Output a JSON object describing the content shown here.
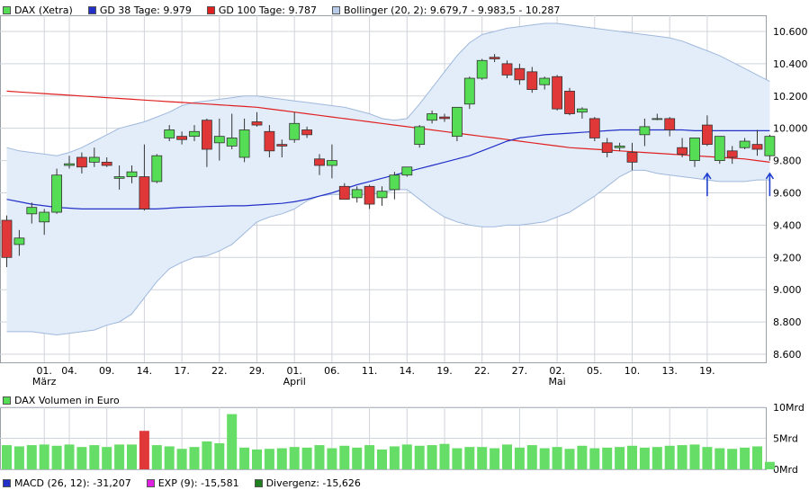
{
  "legend": {
    "dax": "DAX (Xetra)",
    "gd38": "GD 38 Tage: 9.979",
    "gd100": "GD 100 Tage: 9.787",
    "bollinger": "Bollinger (20, 2): 9.679,7 - 9.983,5 - 10.287"
  },
  "volume_legend": {
    "label": "DAX Volumen in Euro"
  },
  "macd_legend": {
    "macd": "MACD (26, 12): -31,207",
    "exp": "EXP (9): -15,581",
    "divergence": "Divergenz: -15,626"
  },
  "colors": {
    "up": "#55dd55",
    "down": "#e03838",
    "gd38": "#2230c8",
    "gd100": "#e02020",
    "band_fill": "#e3edfa",
    "band_line": "#9fb8dc",
    "annotation": "#2040d0",
    "volume": "#66dd66",
    "volume_hi": "#e03838",
    "grid": "#cfd3da"
  },
  "chart_data": [
    {
      "type": "candlestick",
      "title": "DAX (Xetra)",
      "y_ticks": [
        "10.600",
        "10.400",
        "10.200",
        "10.000",
        "9.800",
        "9.600",
        "9.400",
        "9.200",
        "9.000",
        "8.800",
        "8.600"
      ],
      "y_tick_values": [
        10600,
        10400,
        10200,
        10000,
        9800,
        9600,
        9400,
        9200,
        9000,
        8800,
        8600
      ],
      "ylim": [
        8550,
        10700
      ],
      "x_ticks": [
        {
          "label": "01.",
          "sub": "März",
          "index": 3
        },
        {
          "label": "04.",
          "sub": "",
          "index": 5
        },
        {
          "label": "09.",
          "sub": "",
          "index": 8
        },
        {
          "label": "14.",
          "sub": "",
          "index": 11
        },
        {
          "label": "17.",
          "sub": "",
          "index": 14
        },
        {
          "label": "22.",
          "sub": "",
          "index": 17
        },
        {
          "label": "29.",
          "sub": "",
          "index": 20
        },
        {
          "label": "01.",
          "sub": "April",
          "index": 23
        },
        {
          "label": "06.",
          "sub": "",
          "index": 26
        },
        {
          "label": "11.",
          "sub": "",
          "index": 29
        },
        {
          "label": "14.",
          "sub": "",
          "index": 32
        },
        {
          "label": "19.",
          "sub": "",
          "index": 35
        },
        {
          "label": "22.",
          "sub": "",
          "index": 38
        },
        {
          "label": "27.",
          "sub": "",
          "index": 41
        },
        {
          "label": "02.",
          "sub": "Mai",
          "index": 44
        },
        {
          "label": "05.",
          "sub": "",
          "index": 47
        },
        {
          "label": "10.",
          "sub": "",
          "index": 50
        },
        {
          "label": "13.",
          "sub": "",
          "index": 53
        },
        {
          "label": "19.",
          "sub": "",
          "index": 56
        }
      ],
      "candles": [
        {
          "o": 9430,
          "h": 9460,
          "l": 9140,
          "c": 9200
        },
        {
          "o": 9280,
          "h": 9370,
          "l": 9210,
          "c": 9320
        },
        {
          "o": 9470,
          "h": 9540,
          "l": 9410,
          "c": 9510
        },
        {
          "o": 9420,
          "h": 9500,
          "l": 9340,
          "c": 9480
        },
        {
          "o": 9480,
          "h": 9750,
          "l": 9470,
          "c": 9710
        },
        {
          "o": 9770,
          "h": 9830,
          "l": 9750,
          "c": 9780
        },
        {
          "o": 9820,
          "h": 9850,
          "l": 9720,
          "c": 9760
        },
        {
          "o": 9790,
          "h": 9880,
          "l": 9760,
          "c": 9820
        },
        {
          "o": 9790,
          "h": 9820,
          "l": 9760,
          "c": 9770
        },
        {
          "o": 9690,
          "h": 9770,
          "l": 9620,
          "c": 9700
        },
        {
          "o": 9700,
          "h": 9770,
          "l": 9660,
          "c": 9730
        },
        {
          "o": 9700,
          "h": 9900,
          "l": 9490,
          "c": 9500
        },
        {
          "o": 9670,
          "h": 9840,
          "l": 9660,
          "c": 9830
        },
        {
          "o": 9940,
          "h": 10020,
          "l": 9920,
          "c": 9990
        },
        {
          "o": 9950,
          "h": 9980,
          "l": 9900,
          "c": 9930
        },
        {
          "o": 9950,
          "h": 10020,
          "l": 9920,
          "c": 9980
        },
        {
          "o": 10050,
          "h": 10060,
          "l": 9760,
          "c": 9870
        },
        {
          "o": 9910,
          "h": 10060,
          "l": 9800,
          "c": 9950
        },
        {
          "o": 9890,
          "h": 10090,
          "l": 9870,
          "c": 9940
        },
        {
          "o": 9820,
          "h": 10060,
          "l": 9790,
          "c": 9990
        },
        {
          "o": 10040,
          "h": 10100,
          "l": 10010,
          "c": 10020
        },
        {
          "o": 9980,
          "h": 10020,
          "l": 9820,
          "c": 9860
        },
        {
          "o": 9900,
          "h": 9930,
          "l": 9820,
          "c": 9890
        },
        {
          "o": 9930,
          "h": 10100,
          "l": 9910,
          "c": 10030
        },
        {
          "o": 9990,
          "h": 10010,
          "l": 9940,
          "c": 9960
        },
        {
          "o": 9810,
          "h": 9840,
          "l": 9710,
          "c": 9770
        },
        {
          "o": 9770,
          "h": 9900,
          "l": 9690,
          "c": 9800
        },
        {
          "o": 9640,
          "h": 9660,
          "l": 9560,
          "c": 9560
        },
        {
          "o": 9570,
          "h": 9640,
          "l": 9540,
          "c": 9620
        },
        {
          "o": 9640,
          "h": 9650,
          "l": 9500,
          "c": 9530
        },
        {
          "o": 9570,
          "h": 9640,
          "l": 9520,
          "c": 9610
        },
        {
          "o": 9620,
          "h": 9730,
          "l": 9560,
          "c": 9710
        },
        {
          "o": 9710,
          "h": 9760,
          "l": 9700,
          "c": 9760
        },
        {
          "o": 9900,
          "h": 10020,
          "l": 9880,
          "c": 10010
        },
        {
          "o": 10050,
          "h": 10110,
          "l": 10030,
          "c": 10090
        },
        {
          "o": 10070,
          "h": 10090,
          "l": 10040,
          "c": 10060
        },
        {
          "o": 9950,
          "h": 10130,
          "l": 9920,
          "c": 10130
        },
        {
          "o": 10150,
          "h": 10320,
          "l": 10120,
          "c": 10310
        },
        {
          "o": 10310,
          "h": 10430,
          "l": 10300,
          "c": 10420
        },
        {
          "o": 10440,
          "h": 10460,
          "l": 10410,
          "c": 10430
        },
        {
          "o": 10400,
          "h": 10420,
          "l": 10310,
          "c": 10330
        },
        {
          "o": 10370,
          "h": 10400,
          "l": 10270,
          "c": 10300
        },
        {
          "o": 10350,
          "h": 10380,
          "l": 10220,
          "c": 10240
        },
        {
          "o": 10270,
          "h": 10320,
          "l": 10240,
          "c": 10310
        },
        {
          "o": 10320,
          "h": 10330,
          "l": 10110,
          "c": 10120
        },
        {
          "o": 10230,
          "h": 10250,
          "l": 10080,
          "c": 10090
        },
        {
          "o": 10100,
          "h": 10130,
          "l": 10060,
          "c": 10120
        },
        {
          "o": 10060,
          "h": 10070,
          "l": 9920,
          "c": 9940
        },
        {
          "o": 9910,
          "h": 9940,
          "l": 9820,
          "c": 9850
        },
        {
          "o": 9880,
          "h": 9910,
          "l": 9860,
          "c": 9890
        },
        {
          "o": 9850,
          "h": 9910,
          "l": 9740,
          "c": 9790
        },
        {
          "o": 9960,
          "h": 10060,
          "l": 9890,
          "c": 10010
        },
        {
          "o": 10060,
          "h": 10090,
          "l": 10050,
          "c": 10060
        },
        {
          "o": 10060,
          "h": 10070,
          "l": 9950,
          "c": 9990
        },
        {
          "o": 9880,
          "h": 9940,
          "l": 9820,
          "c": 9840
        },
        {
          "o": 9800,
          "h": 9940,
          "l": 9760,
          "c": 9940
        },
        {
          "o": 10020,
          "h": 10080,
          "l": 9890,
          "c": 9900
        },
        {
          "o": 9800,
          "h": 9950,
          "l": 9780,
          "c": 9950
        },
        {
          "o": 9860,
          "h": 9890,
          "l": 9780,
          "c": 9820
        },
        {
          "o": 9880,
          "h": 9940,
          "l": 9870,
          "c": 9920
        },
        {
          "o": 9900,
          "h": 9990,
          "l": 9830,
          "c": 9870
        },
        {
          "o": 9830,
          "h": 9960,
          "l": 9800,
          "c": 9950
        }
      ],
      "series": [
        {
          "name": "GD 38 Tage: 9.979",
          "values": [
            9560,
            9545,
            9530,
            9520,
            9510,
            9505,
            9500,
            9500,
            9500,
            9500,
            9500,
            9500,
            9500,
            9505,
            9510,
            9512,
            9515,
            9517,
            9520,
            9520,
            9525,
            9530,
            9535,
            9545,
            9560,
            9580,
            9600,
            9625,
            9650,
            9670,
            9690,
            9710,
            9730,
            9750,
            9770,
            9790,
            9810,
            9830,
            9860,
            9890,
            9920,
            9940,
            9950,
            9960,
            9965,
            9970,
            9975,
            9980,
            9985,
            9990,
            9990,
            9990,
            9990,
            9990,
            9990,
            9985,
            9985,
            9985,
            9985,
            9985,
            9985,
            9985
          ]
        },
        {
          "name": "GD 100 Tage: 9.787",
          "values": [
            10230,
            10225,
            10220,
            10215,
            10210,
            10205,
            10200,
            10195,
            10190,
            10185,
            10180,
            10175,
            10170,
            10165,
            10160,
            10155,
            10150,
            10145,
            10140,
            10135,
            10130,
            10120,
            10110,
            10100,
            10090,
            10080,
            10070,
            10060,
            10050,
            10040,
            10030,
            10020,
            10010,
            10000,
            9990,
            9980,
            9970,
            9960,
            9950,
            9940,
            9930,
            9920,
            9910,
            9900,
            9890,
            9880,
            9875,
            9870,
            9865,
            9860,
            9855,
            9850,
            9845,
            9840,
            9835,
            9830,
            9825,
            9820,
            9815,
            9810,
            9800,
            9790
          ]
        },
        {
          "name": "Bollinger (20, 2): 9.679,7 - 9.983,5 - 10.287",
          "upper": [
            9880,
            9860,
            9850,
            9840,
            9830,
            9850,
            9880,
            9920,
            9960,
            10000,
            10020,
            10040,
            10070,
            10100,
            10140,
            10160,
            10170,
            10180,
            10190,
            10200,
            10200,
            10190,
            10180,
            10170,
            10160,
            10150,
            10140,
            10130,
            10110,
            10090,
            10060,
            10050,
            10060,
            10150,
            10250,
            10350,
            10450,
            10530,
            10580,
            10600,
            10620,
            10630,
            10640,
            10650,
            10650,
            10640,
            10630,
            10620,
            10610,
            10600,
            10590,
            10580,
            10570,
            10560,
            10540,
            10510,
            10480,
            10450,
            10410,
            10370,
            10330,
            10290
          ],
          "lower": [
            8740,
            8740,
            8740,
            8730,
            8720,
            8730,
            8740,
            8750,
            8780,
            8800,
            8850,
            8950,
            9050,
            9130,
            9170,
            9200,
            9210,
            9240,
            9280,
            9350,
            9420,
            9450,
            9470,
            9500,
            9550,
            9580,
            9590,
            9590,
            9590,
            9590,
            9600,
            9620,
            9620,
            9560,
            9500,
            9450,
            9420,
            9400,
            9390,
            9390,
            9400,
            9400,
            9410,
            9420,
            9450,
            9480,
            9530,
            9580,
            9640,
            9700,
            9740,
            9740,
            9720,
            9710,
            9700,
            9690,
            9680,
            9670,
            9670,
            9670,
            9680,
            9680
          ]
        }
      ],
      "annotations": [
        {
          "type": "arrow-up",
          "index": 56
        },
        {
          "type": "arrow-up",
          "index": 61
        }
      ]
    },
    {
      "type": "bar",
      "title": "DAX Volumen in Euro",
      "y_ticks": [
        "10Mrd",
        "5Mrd",
        "0Mrd"
      ],
      "y_tick_values": [
        10,
        5,
        0
      ],
      "ylim": [
        0,
        10
      ],
      "values": [
        3.9,
        3.7,
        3.9,
        4.0,
        3.8,
        4.0,
        3.6,
        3.9,
        3.6,
        4.0,
        4.0,
        6.2,
        3.9,
        3.7,
        3.3,
        3.6,
        4.5,
        4.2,
        8.9,
        3.5,
        3.2,
        3.3,
        3.4,
        3.6,
        3.5,
        3.9,
        3.4,
        3.8,
        3.5,
        3.9,
        3.2,
        3.7,
        4.0,
        3.8,
        3.9,
        4.1,
        3.4,
        3.6,
        3.6,
        3.4,
        4.0,
        3.5,
        3.9,
        3.4,
        3.6,
        3.3,
        3.8,
        3.4,
        3.5,
        3.6,
        3.8,
        3.5,
        3.6,
        3.8,
        3.9,
        4.0,
        3.6,
        3.4,
        3.3,
        3.5,
        3.7,
        1.2
      ],
      "highlight_index": 11
    }
  ]
}
